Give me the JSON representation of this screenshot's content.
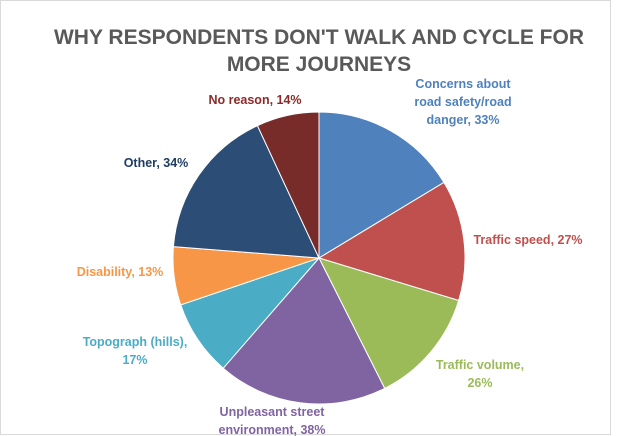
{
  "chart_data": {
    "type": "pie",
    "title": "WHY RESPONDENTS DON'T WALK AND CYCLE FOR MORE JOURNEYS",
    "values": [
      33,
      27,
      26,
      38,
      17,
      13,
      34,
      14
    ],
    "value_labels": [
      "Concerns about road safety/road danger, 33%",
      "Traffic speed, 27%",
      "Traffic volume, 26%",
      "Unpleasant street environment, 38%",
      "Topograph (hills), 17%",
      "Disability, 13%",
      "Other, 34%",
      "No reason, 14%"
    ],
    "colors": [
      "#4f81bd",
      "#c0504d",
      "#9bbb59",
      "#8064a2",
      "#4bacc6",
      "#f79646",
      "#2c4d75",
      "#772c2a"
    ],
    "label_colors": [
      "#4f81bd",
      "#c0504d",
      "#9bbb59",
      "#8064a2",
      "#4bacc6",
      "#f79646",
      "#1f3d63",
      "#8b2a28"
    ]
  }
}
